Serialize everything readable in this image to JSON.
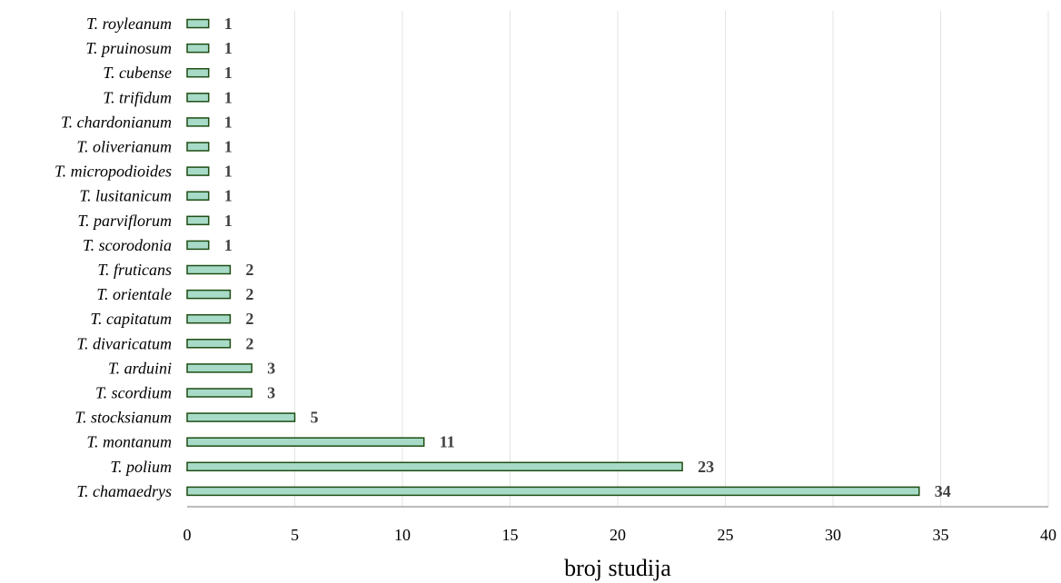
{
  "chart_data": {
    "type": "bar",
    "orientation": "horizontal",
    "categories": [
      "T. royleanum",
      "T. pruinosum",
      "T. cubense",
      "T. trifidum",
      "T. chardonianum",
      "T. oliverianum",
      "T. micropodioides",
      "T. lusitanicum",
      "T. parviflorum",
      "T. scorodonia",
      "T. fruticans",
      "T. orientale",
      "T. capitatum",
      "T. divaricatum",
      "T. arduini",
      "T. scordium",
      "T. stocksianum",
      "T. montanum",
      "T. polium",
      "T. chamaedrys"
    ],
    "values": [
      1,
      1,
      1,
      1,
      1,
      1,
      1,
      1,
      1,
      1,
      2,
      2,
      2,
      2,
      3,
      3,
      5,
      11,
      23,
      34
    ],
    "data_labels": [
      "1",
      "1",
      "1",
      "1",
      "1",
      "1",
      "1",
      "1",
      "1",
      "1",
      "2",
      "2",
      "2",
      "2",
      "3",
      "3",
      "5",
      "11",
      "23",
      "34"
    ],
    "xlabel": "broj studija",
    "xlim": [
      0,
      40
    ],
    "x_ticks": [
      "0",
      "5",
      "10",
      "15",
      "20",
      "25",
      "30",
      "35",
      "40"
    ],
    "grid": "vertical",
    "colors": {
      "bar_fill": "#a7dbc8",
      "bar_edge": "#1e4d12",
      "grid": "#e3e3e3",
      "axis": "#a6a6a6",
      "data_label": "#404040"
    }
  }
}
